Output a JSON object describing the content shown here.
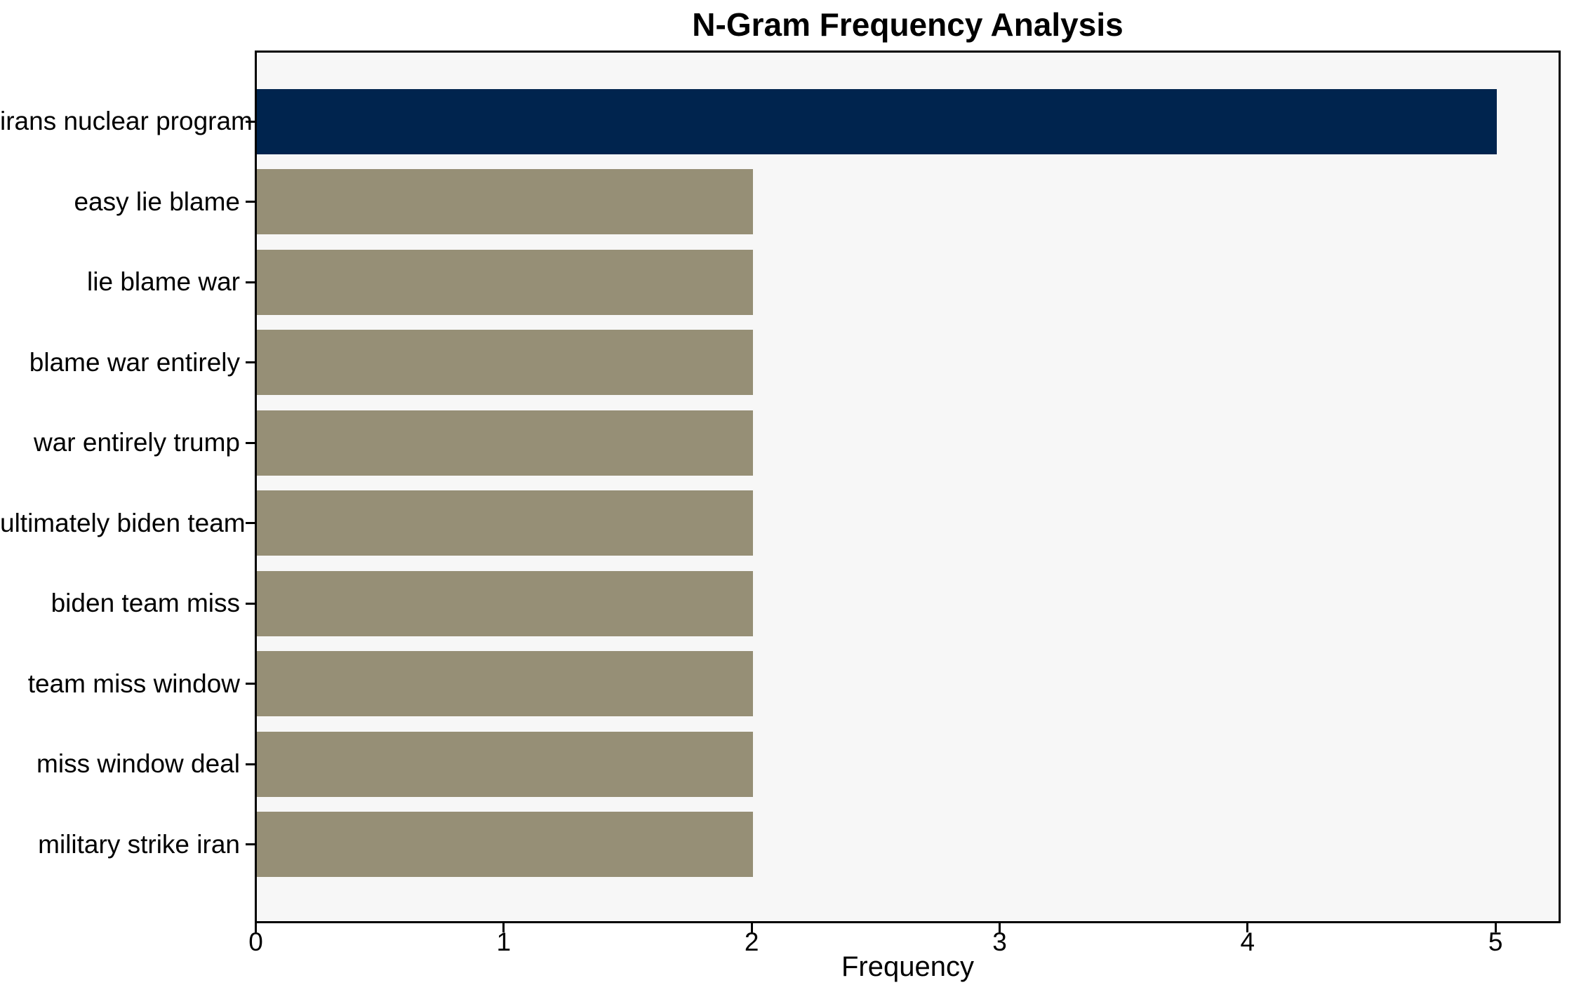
{
  "chart_data": {
    "type": "bar",
    "orientation": "horizontal",
    "title": "N-Gram Frequency Analysis",
    "xlabel": "Frequency",
    "ylabel": "",
    "categories": [
      "irans nuclear program",
      "easy lie blame",
      "lie blame war",
      "blame war entirely",
      "war entirely trump",
      "ultimately biden team",
      "biden team miss",
      "team miss window",
      "miss window deal",
      "military strike iran"
    ],
    "values": [
      5,
      2,
      2,
      2,
      2,
      2,
      2,
      2,
      2,
      2
    ],
    "bar_colors": [
      "#00244e",
      "#968f76",
      "#968f76",
      "#968f76",
      "#968f76",
      "#968f76",
      "#968f76",
      "#968f76",
      "#968f76",
      "#968f76"
    ],
    "xticks": [
      0,
      1,
      2,
      3,
      4,
      5
    ],
    "xlim": [
      0,
      5.25
    ],
    "grid": false,
    "legend": "none",
    "plot_bg": "#f7f7f7",
    "figure_bg": "#ffffff",
    "axis_color": "#000000"
  }
}
